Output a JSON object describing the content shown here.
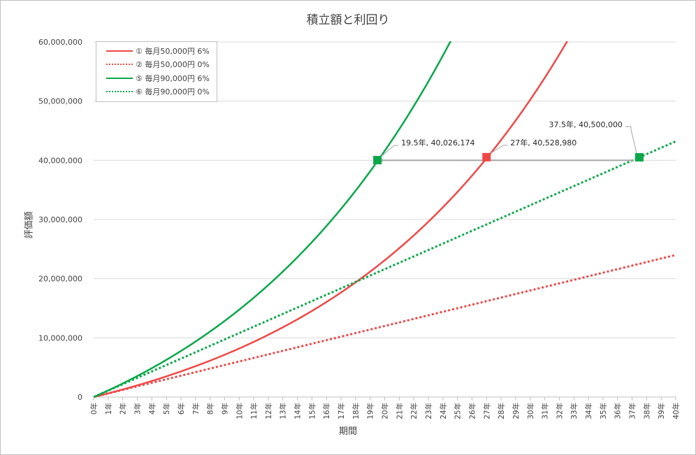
{
  "chart_data": {
    "type": "line",
    "title": "積立額と利回り",
    "xlabel": "期間",
    "ylabel": "評価額",
    "ylim": [
      0,
      60000000
    ],
    "xlim": [
      0,
      40
    ],
    "grid": "horizontal",
    "legend_position": "top-left",
    "y_ticks": [
      "0",
      "10,000,000",
      "20,000,000",
      "30,000,000",
      "40,000,000",
      "50,000,000",
      "60,000,000"
    ],
    "x_ticks": [
      "0年",
      "1年",
      "2年",
      "3年",
      "4年",
      "5年",
      "6年",
      "7年",
      "8年",
      "9年",
      "10年",
      "11年",
      "12年",
      "13年",
      "14年",
      "15年",
      "16年",
      "17年",
      "18年",
      "19年",
      "20年",
      "21年",
      "22年",
      "23年",
      "24年",
      "25年",
      "26年",
      "27年",
      "28年",
      "29年",
      "30年",
      "31年",
      "32年",
      "33年",
      "34年",
      "35年",
      "36年",
      "37年",
      "38年",
      "39年",
      "40年"
    ],
    "series": [
      {
        "name": "① 毎月50,000円 6%",
        "monthly": 50000,
        "rate": 0.06,
        "style": "solid",
        "color": "#f04848"
      },
      {
        "name": "② 毎月50,000円 0%",
        "monthly": 50000,
        "rate": 0,
        "style": "dotted",
        "color": "#f04848"
      },
      {
        "name": "⑤ 毎月90,000円 6%",
        "monthly": 90000,
        "rate": 0.06,
        "style": "solid",
        "color": "#0aa74a"
      },
      {
        "name": "⑥ 毎月90,000円 0%",
        "monthly": 90000,
        "rate": 0,
        "style": "dotted",
        "color": "#0aa74a"
      }
    ],
    "markers": [
      {
        "x": 19.5,
        "y": 40026174,
        "label": "19.5年, 40,026,174",
        "color": "#0aa74a"
      },
      {
        "x": 27,
        "y": 40528980,
        "label": "27年, 40,528,980",
        "color": "#f04848"
      },
      {
        "x": 37.5,
        "y": 40500000,
        "label": "37.5年, 40,500,000",
        "color": "#0aa74a"
      }
    ],
    "arrow": {
      "from_x": 37.5,
      "to_x": 19.5,
      "y": 40000000,
      "color": "#a6a6a6"
    }
  }
}
